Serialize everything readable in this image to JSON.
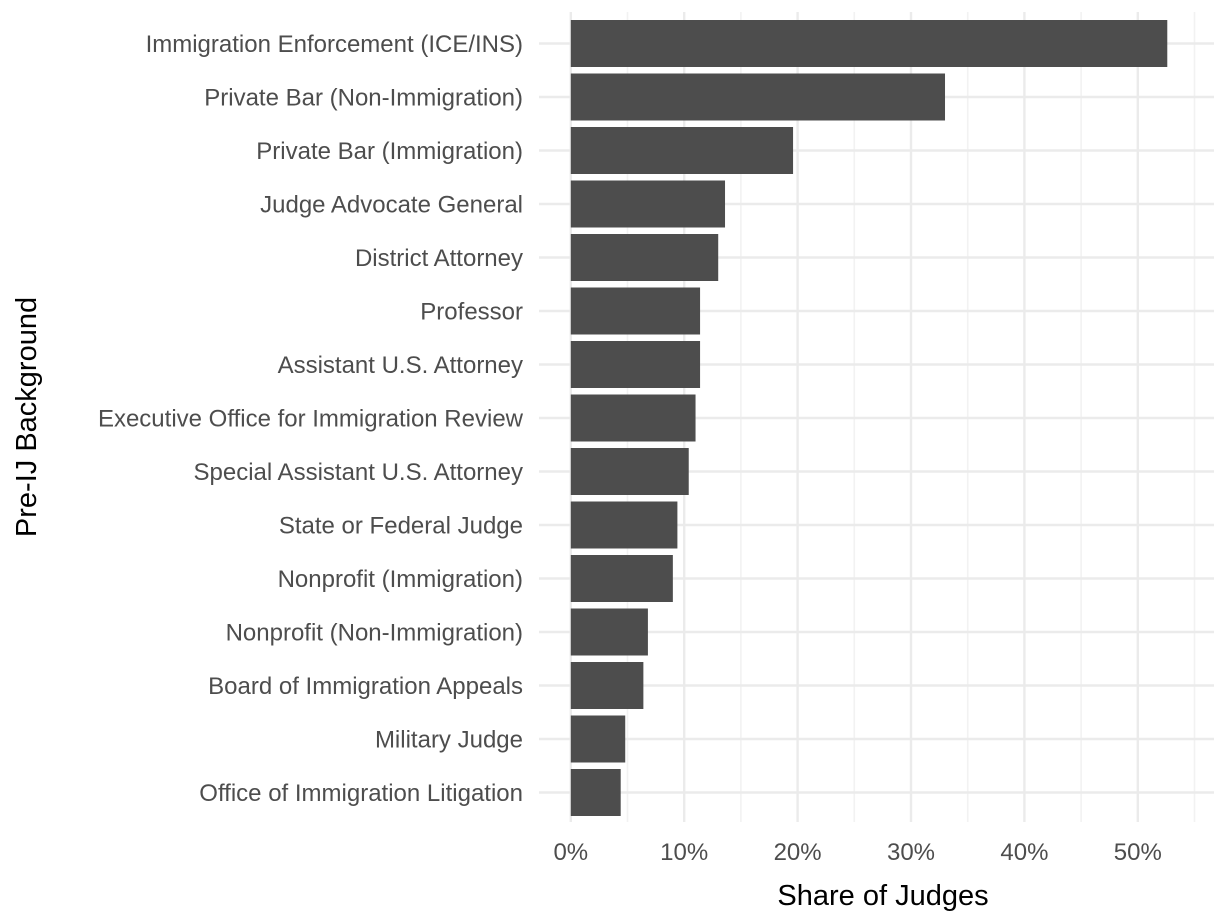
{
  "chart_data": {
    "type": "bar",
    "orientation": "horizontal",
    "title": "",
    "xlabel": "Share of Judges",
    "ylabel": "Pre-IJ Background",
    "categories": [
      "Immigration Enforcement (ICE/INS)",
      "Private Bar (Non-Immigration)",
      "Private Bar (Immigration)",
      "Judge Advocate General",
      "District Attorney",
      "Professor",
      "Assistant U.S. Attorney",
      "Executive Office for Immigration Review",
      "Special Assistant U.S. Attorney",
      "State or Federal Judge",
      "Nonprofit (Immigration)",
      "Nonprofit (Non-Immigration)",
      "Board of Immigration Appeals",
      "Military Judge",
      "Office of Immigration Litigation"
    ],
    "values": [
      52.6,
      33.0,
      19.6,
      13.6,
      13.0,
      11.4,
      11.4,
      11.0,
      10.4,
      9.4,
      9.0,
      6.8,
      6.4,
      4.8,
      4.4
    ],
    "xlim": [
      0,
      55
    ],
    "xticks": [
      0,
      10,
      20,
      30,
      40,
      50
    ],
    "xtick_labels": [
      "0%",
      "10%",
      "20%",
      "30%",
      "40%",
      "50%"
    ],
    "grid": true,
    "legend": "none",
    "colors": {
      "bar": "#4d4d4d",
      "grid_major": "#ebebeb",
      "grid_minor": "#f2f2f2"
    }
  }
}
